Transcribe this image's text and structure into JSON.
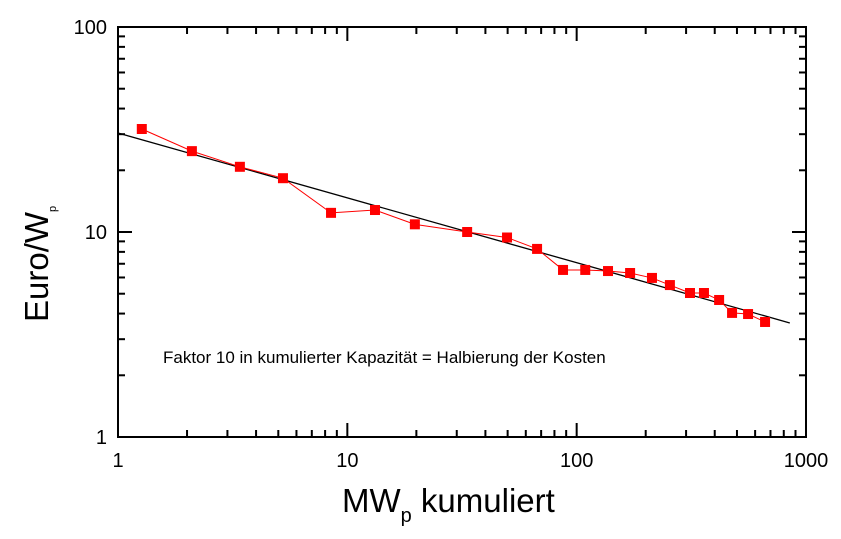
{
  "chart_data": {
    "type": "line",
    "xscale": "log",
    "yscale": "log",
    "xlim": [
      1,
      1000
    ],
    "ylim": [
      1,
      100
    ],
    "xlabel": {
      "main": "MW",
      "sub": "p",
      "rest": " kumuliert"
    },
    "ylabel": {
      "main": "Euro/W",
      "sub": "p"
    },
    "xticks": [
      "1",
      "10",
      "100",
      "1000"
    ],
    "yticks": [
      "1",
      "10",
      "100"
    ],
    "annotation": "Faktor 10 in kumulierter Kapazität = Halbierung der Kosten",
    "grid": false,
    "series": [
      {
        "color": "#ff0000",
        "marker": "square",
        "x": [
          1.27,
          2.1,
          3.4,
          5.24,
          8.49,
          13.2,
          19.7,
          33.3,
          49.7,
          67.2,
          87.2,
          109,
          137,
          171,
          213,
          255,
          312,
          359,
          418,
          476,
          559,
          663
        ],
        "y": [
          31.8,
          24.8,
          20.8,
          18.3,
          12.4,
          12.8,
          10.9,
          10.0,
          9.4,
          8.27,
          6.53,
          6.53,
          6.45,
          6.31,
          5.97,
          5.51,
          5.04,
          5.04,
          4.66,
          4.03,
          3.98,
          3.64
        ]
      },
      {
        "color": "#000000",
        "marker": "none",
        "x": [
          1,
          850
        ],
        "y": [
          30.4,
          3.6
        ]
      }
    ]
  }
}
